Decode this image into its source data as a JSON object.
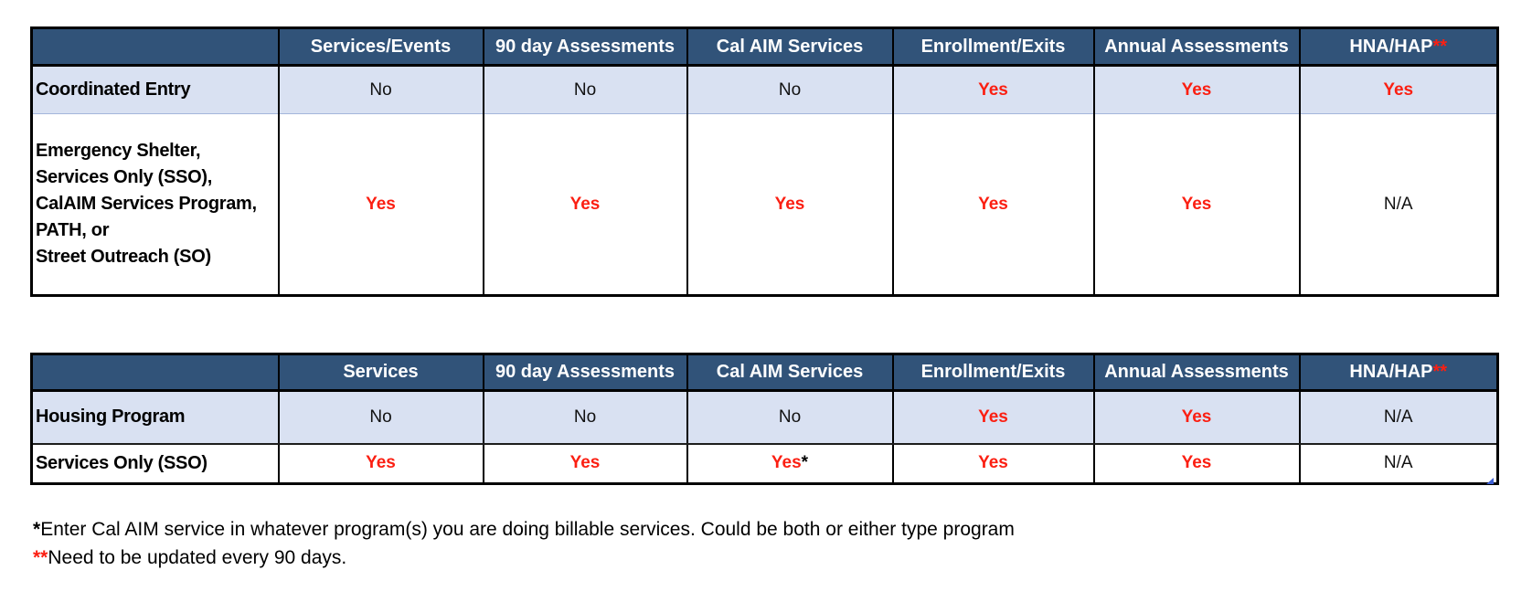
{
  "colors": {
    "header_bg": "#315379",
    "header_text": "#FFFFFF",
    "alt_row_bg": "#D9E1F2",
    "red": "#FB1F12",
    "text": "#111111"
  },
  "tables": [
    {
      "name": "entry-and-services-programs-table",
      "columns": [
        [],
        [
          {
            "t": "Services/Events",
            "c": "white"
          }
        ],
        [
          {
            "t": "90 day Assessments",
            "c": "white"
          }
        ],
        [
          {
            "t": "Cal AIM Services",
            "c": "white"
          }
        ],
        [
          {
            "t": "Enrollment/Exits",
            "c": "white"
          }
        ],
        [
          {
            "t": "Annual Assessments",
            "c": "white"
          }
        ],
        [
          {
            "t": "HNA/HAP",
            "c": "white"
          },
          {
            "t": "**",
            "c": "red"
          }
        ]
      ],
      "rows": [
        {
          "label": "Coordinated Entry",
          "cells": [
            [
              {
                "t": "No",
                "c": "dark"
              }
            ],
            [
              {
                "t": "No",
                "c": "dark"
              }
            ],
            [
              {
                "t": "No",
                "c": "dark"
              }
            ],
            [
              {
                "t": "Yes",
                "c": "red"
              }
            ],
            [
              {
                "t": "Yes",
                "c": "red"
              }
            ],
            [
              {
                "t": "Yes",
                "c": "red"
              }
            ]
          ]
        },
        {
          "label": "Emergency Shelter,\nServices Only (SSO),\nCalAIM Services Program,\nPATH, or\nStreet Outreach (SO)",
          "cells": [
            [
              {
                "t": "Yes",
                "c": "red"
              }
            ],
            [
              {
                "t": "Yes",
                "c": "red"
              }
            ],
            [
              {
                "t": "Yes",
                "c": "red"
              }
            ],
            [
              {
                "t": "Yes",
                "c": "red"
              }
            ],
            [
              {
                "t": "Yes",
                "c": "red"
              }
            ],
            [
              {
                "t": "N/A",
                "c": "dark"
              }
            ]
          ]
        }
      ]
    },
    {
      "name": "housing-programs-table",
      "columns": [
        [],
        [
          {
            "t": "Services",
            "c": "white"
          }
        ],
        [
          {
            "t": "90 day Assessments",
            "c": "white"
          }
        ],
        [
          {
            "t": "Cal AIM Services",
            "c": "white"
          }
        ],
        [
          {
            "t": "Enrollment/Exits",
            "c": "white"
          }
        ],
        [
          {
            "t": "Annual Assessments",
            "c": "white"
          }
        ],
        [
          {
            "t": "HNA/HAP",
            "c": "white"
          },
          {
            "t": "**",
            "c": "red"
          }
        ]
      ],
      "rows": [
        {
          "label": "Housing Program",
          "cells": [
            [
              {
                "t": "No",
                "c": "dark"
              }
            ],
            [
              {
                "t": "No",
                "c": "dark"
              }
            ],
            [
              {
                "t": "No",
                "c": "dark"
              }
            ],
            [
              {
                "t": "Yes",
                "c": "red"
              }
            ],
            [
              {
                "t": "Yes",
                "c": "red"
              }
            ],
            [
              {
                "t": "N/A",
                "c": "dark"
              }
            ]
          ]
        },
        {
          "label": "Services Only (SSO)",
          "cells": [
            [
              {
                "t": "Yes",
                "c": "red"
              }
            ],
            [
              {
                "t": "Yes",
                "c": "red"
              }
            ],
            [
              {
                "t": "Yes",
                "c": "red"
              },
              {
                "t": "*",
                "c": "dark-bold"
              }
            ],
            [
              {
                "t": "Yes",
                "c": "red"
              }
            ],
            [
              {
                "t": "Yes",
                "c": "red"
              }
            ],
            [
              {
                "t": "N/A",
                "c": "dark"
              }
            ]
          ]
        }
      ]
    }
  ],
  "footnotes": [
    {
      "marker": "*",
      "marker_color": "dark",
      "text": "Enter Cal AIM service in whatever program(s) you are doing billable services. Could be both or either type program"
    },
    {
      "marker": "**",
      "marker_color": "red",
      "text": "Need to be updated every 90 days."
    }
  ]
}
